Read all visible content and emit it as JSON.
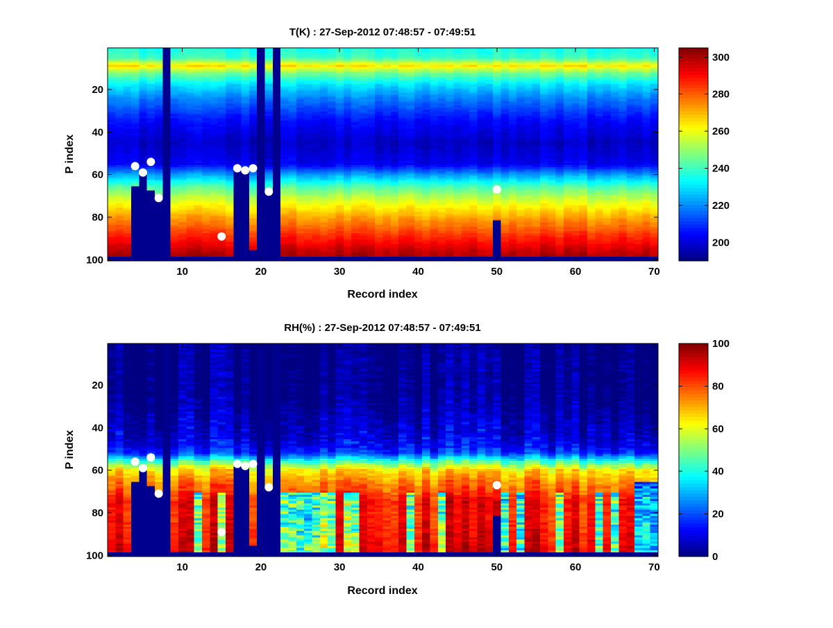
{
  "chart_data": [
    {
      "type": "heatmap",
      "title": "T(K) : 27-Sep-2012 07:48:57 - 07:49:51",
      "xlabel": "Record index",
      "ylabel": "P index",
      "xlim": [
        0.5,
        70.5
      ],
      "ylim": [
        100.5,
        0.5
      ],
      "xticks": [
        10,
        20,
        30,
        40,
        50,
        60,
        70
      ],
      "yticks": [
        20,
        40,
        60,
        80,
        100
      ],
      "colormap": "jet",
      "clim": [
        190,
        305
      ],
      "colorbar_ticks": [
        200,
        220,
        240,
        260,
        280,
        300
      ],
      "profile_p": [
        1,
        5,
        9,
        12,
        18,
        25,
        35,
        45,
        55,
        60,
        65,
        70,
        75,
        80,
        85,
        90,
        95,
        98
      ],
      "profile_v": [
        236,
        240,
        265,
        248,
        230,
        218,
        205,
        198,
        203,
        222,
        240,
        253,
        263,
        272,
        280,
        288,
        296,
        300
      ],
      "noise": 6,
      "masked_rows_from": 99,
      "masked_columns": {
        "4": 66,
        "5": 60,
        "6": 68,
        "7": 71,
        "8": 1,
        "17": 57,
        "18": 58,
        "19": 96,
        "20": 1,
        "21": 69,
        "22": 1,
        "50": 82
      },
      "markers": [
        [
          4,
          56
        ],
        [
          5,
          59
        ],
        [
          6,
          54
        ],
        [
          7,
          71
        ],
        [
          15,
          89
        ],
        [
          17,
          57
        ],
        [
          18,
          58
        ],
        [
          19,
          57
        ],
        [
          21,
          68
        ],
        [
          50,
          67
        ]
      ]
    },
    {
      "type": "heatmap",
      "title": "RH(%) : 27-Sep-2012 07:48:57 - 07:49:51",
      "xlabel": "Record index",
      "ylabel": "P index",
      "xlim": [
        0.5,
        70.5
      ],
      "ylim": [
        100.5,
        0.5
      ],
      "xticks": [
        10,
        20,
        30,
        40,
        50,
        60,
        70
      ],
      "yticks": [
        20,
        40,
        60,
        80,
        100
      ],
      "colormap": "jet",
      "clim": [
        0,
        100
      ],
      "colorbar_ticks": [
        0,
        20,
        40,
        60,
        80,
        100
      ],
      "profile_p": [
        1,
        25,
        35,
        45,
        52,
        56,
        60,
        65,
        70,
        75,
        80,
        90,
        98
      ],
      "profile_v": [
        1,
        2,
        6,
        10,
        18,
        45,
        65,
        74,
        80,
        88,
        85,
        88,
        90
      ],
      "noise": 14,
      "masked_rows_from": 99,
      "masked_columns": {
        "4": 66,
        "5": 60,
        "6": 68,
        "7": 71,
        "8": 1,
        "17": 57,
        "18": 58,
        "19": 96,
        "20": 1,
        "21": 69,
        "22": 1,
        "50": 82
      },
      "markers": [
        [
          4,
          56
        ],
        [
          5,
          59
        ],
        [
          6,
          54
        ],
        [
          7,
          71
        ],
        [
          15,
          89
        ],
        [
          17,
          57
        ],
        [
          18,
          58
        ],
        [
          19,
          57
        ],
        [
          21,
          68
        ],
        [
          50,
          67
        ]
      ]
    }
  ]
}
